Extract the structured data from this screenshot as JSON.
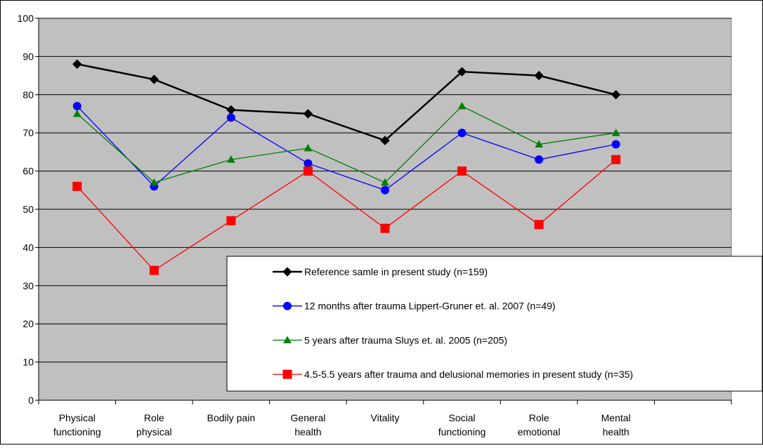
{
  "chart_data": {
    "type": "line",
    "categories": [
      "Physical functioning",
      "Role physical",
      "Bodily pain",
      "General health",
      "Vitality",
      "Social functioning",
      "Role emotional",
      "Mental health",
      null
    ],
    "series": [
      {
        "name": "Reference samle in present study (n=159)",
        "color": "#000000",
        "marker": "diamond",
        "values": [
          88,
          84,
          76,
          75,
          68,
          86,
          85,
          80,
          null
        ]
      },
      {
        "name": "12  months after trauma Lippert-Gruner et. al. 2007 (n=49)",
        "color": "#0000ff",
        "marker": "circle",
        "values": [
          77,
          56,
          74,
          62,
          55,
          70,
          63,
          67,
          null
        ]
      },
      {
        "name": "5 years after trauma Sluys et. al. 2005 (n=205)",
        "color": "#008000",
        "marker": "triangle",
        "values": [
          75,
          57,
          63,
          66,
          57,
          77,
          67,
          70,
          null
        ]
      },
      {
        "name": "4.5-5.5 years after trauma and delusional memories in present study (n=35)",
        "color": "#ff0000",
        "marker": "square",
        "values": [
          56,
          34,
          47,
          60,
          45,
          60,
          46,
          63,
          null
        ]
      }
    ],
    "ylim": [
      0,
      100
    ],
    "yticks": [
      0,
      10,
      20,
      30,
      40,
      50,
      60,
      70,
      80,
      90,
      100
    ],
    "grid": true,
    "legend": "lower-right"
  }
}
